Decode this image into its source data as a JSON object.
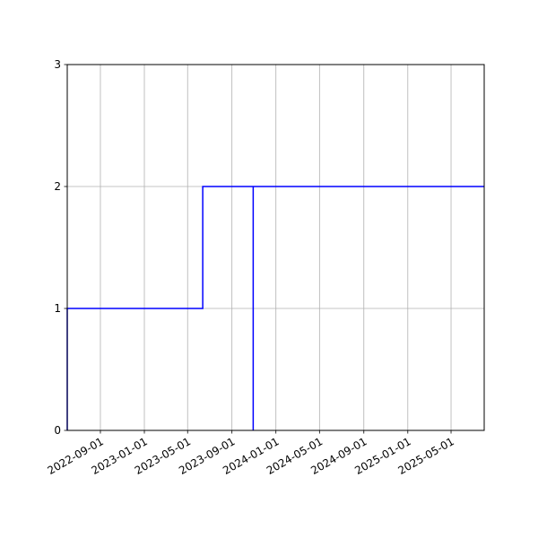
{
  "chart_data": {
    "type": "line",
    "title": "",
    "xlabel": "",
    "ylabel": "",
    "x_axis": "date",
    "xlim": [
      "2022-06-01",
      "2025-08-01"
    ],
    "ylim": [
      0,
      3
    ],
    "grid": true,
    "legend": "none",
    "x_ticks": [
      {
        "date": "2022-09-01",
        "label": "2022-09-01"
      },
      {
        "date": "2023-01-01",
        "label": "2023-01-01"
      },
      {
        "date": "2023-05-01",
        "label": "2023-05-01"
      },
      {
        "date": "2023-09-01",
        "label": "2023-09-01"
      },
      {
        "date": "2024-01-01",
        "label": "2024-01-01"
      },
      {
        "date": "2024-05-01",
        "label": "2024-05-01"
      },
      {
        "date": "2024-09-01",
        "label": "2024-09-01"
      },
      {
        "date": "2025-01-01",
        "label": "2025-01-01"
      },
      {
        "date": "2025-05-01",
        "label": "2025-05-01"
      }
    ],
    "y_ticks": [
      {
        "value": 0,
        "label": "0"
      },
      {
        "value": 1,
        "label": "1"
      },
      {
        "value": 2,
        "label": "2"
      },
      {
        "value": 3,
        "label": "3"
      }
    ],
    "series": [
      {
        "color": "#0000ff",
        "points": [
          {
            "x": "2022-06-01",
            "y": 0
          },
          {
            "x": "2022-06-01",
            "y": 1
          },
          {
            "x": "2023-06-12",
            "y": 1
          },
          {
            "x": "2023-06-12",
            "y": 2
          },
          {
            "x": "2023-10-30",
            "y": 2
          },
          {
            "x": "2023-10-30",
            "y": 0
          },
          {
            "x": "2023-10-30",
            "y": 2
          },
          {
            "x": "2025-08-01",
            "y": 2
          }
        ]
      }
    ]
  }
}
